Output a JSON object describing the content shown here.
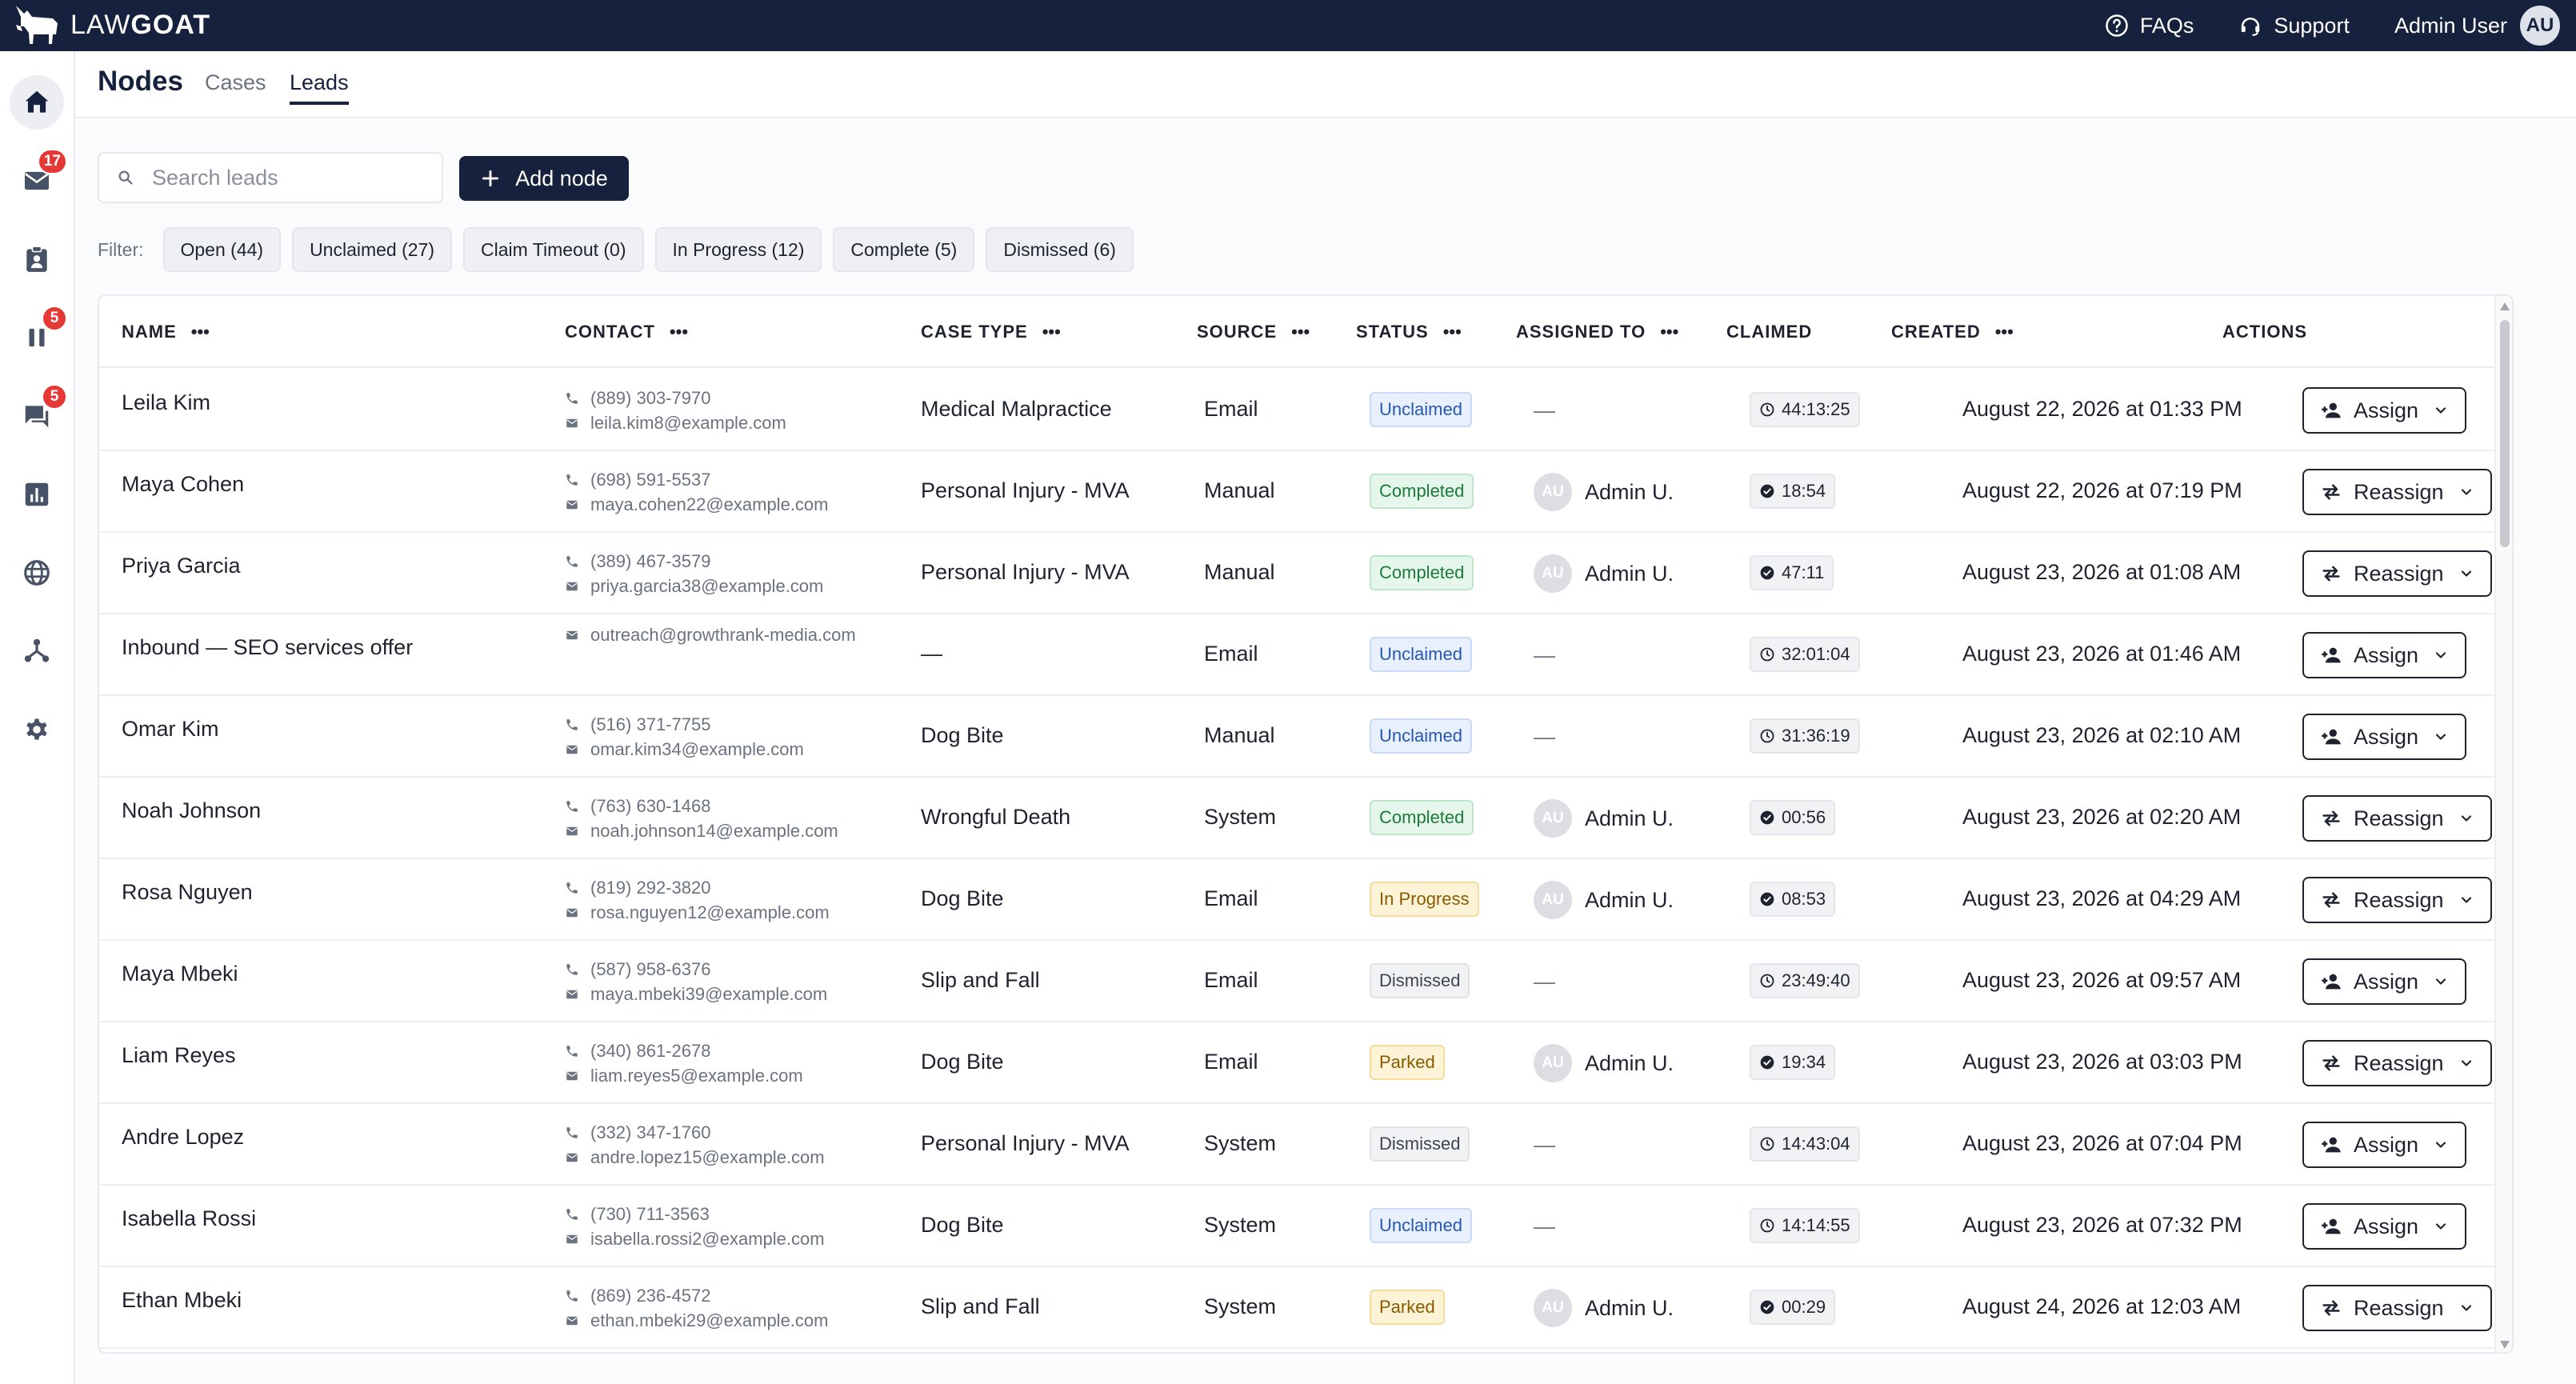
{
  "brand": {
    "name_light": "LAW",
    "name_bold": "GOAT",
    "icon": "goat-logo-icon"
  },
  "topbar": {
    "faqs": "FAQs",
    "support": "Support",
    "user_name": "Admin User",
    "user_initials": "AU"
  },
  "rail": {
    "items": [
      {
        "name": "home",
        "icon": "home-icon",
        "badge": ""
      },
      {
        "name": "mail",
        "icon": "mail-icon",
        "badge": "17"
      },
      {
        "name": "clipboard",
        "icon": "clipboard-user-icon",
        "badge": ""
      },
      {
        "name": "pause",
        "icon": "pause-icon",
        "badge": "5"
      },
      {
        "name": "chat",
        "icon": "chat-icon",
        "badge": "5"
      },
      {
        "name": "analytics",
        "icon": "bar-chart-icon",
        "badge": ""
      },
      {
        "name": "globe",
        "icon": "globe-icon",
        "badge": ""
      },
      {
        "name": "network",
        "icon": "network-icon",
        "badge": ""
      },
      {
        "name": "settings",
        "icon": "gear-icon",
        "badge": ""
      }
    ]
  },
  "header": {
    "title": "Nodes",
    "tabs": [
      {
        "label": "Cases"
      },
      {
        "label": "Leads"
      }
    ],
    "active_tab": "Leads"
  },
  "toolbar": {
    "search_placeholder": "Search leads",
    "search_value": "",
    "add_label": "Add node"
  },
  "filters": {
    "label": "Filter:",
    "chips": [
      {
        "label": "Open (44)"
      },
      {
        "label": "Unclaimed (27)"
      },
      {
        "label": "Claim Timeout (0)"
      },
      {
        "label": "In Progress (12)"
      },
      {
        "label": "Complete (5)"
      },
      {
        "label": "Dismissed (6)"
      }
    ]
  },
  "table": {
    "columns": [
      {
        "label": "NAME",
        "menu": true
      },
      {
        "label": "CONTACT",
        "menu": true
      },
      {
        "label": "CASE TYPE",
        "menu": true
      },
      {
        "label": "SOURCE",
        "menu": true
      },
      {
        "label": "STATUS",
        "menu": true
      },
      {
        "label": "ASSIGNED TO",
        "menu": true
      },
      {
        "label": "CLAIMED",
        "menu": false
      },
      {
        "label": "CREATED",
        "menu": true
      },
      {
        "label": "ACTIONS",
        "menu": false
      }
    ],
    "column_menu_glyph": "•••",
    "rows": [
      {
        "name": "Leila Kim",
        "phone": "(889) 303-7970",
        "email": "leila.kim8@example.com",
        "case_type": "Medical Malpractice",
        "source": "Email",
        "status": "Unclaimed",
        "assigned": "",
        "claimed": "44:13:25",
        "claimed_done": false,
        "created": "August 22, 2026 at 01:33 PM",
        "action": "Assign"
      },
      {
        "name": "Maya Cohen",
        "phone": "(698) 591-5537",
        "email": "maya.cohen22@example.com",
        "case_type": "Personal Injury - MVA",
        "source": "Manual",
        "status": "Completed",
        "assigned": "Admin U.",
        "claimed": "18:54",
        "claimed_done": true,
        "created": "August 22, 2026 at 07:19 PM",
        "action": "Reassign"
      },
      {
        "name": "Priya Garcia",
        "phone": "(389) 467-3579",
        "email": "priya.garcia38@example.com",
        "case_type": "Personal Injury - MVA",
        "source": "Manual",
        "status": "Completed",
        "assigned": "Admin U.",
        "claimed": "47:11",
        "claimed_done": true,
        "created": "August 23, 2026 at 01:08 AM",
        "action": "Reassign"
      },
      {
        "name": "Inbound — SEO services offer",
        "phone": "",
        "email": "outreach@growthrank-media.com",
        "case_type": "—",
        "source": "Email",
        "status": "Unclaimed",
        "assigned": "",
        "claimed": "32:01:04",
        "claimed_done": false,
        "created": "August 23, 2026 at 01:46 AM",
        "action": "Assign"
      },
      {
        "name": "Omar Kim",
        "phone": "(516) 371-7755",
        "email": "omar.kim34@example.com",
        "case_type": "Dog Bite",
        "source": "Manual",
        "status": "Unclaimed",
        "assigned": "",
        "claimed": "31:36:19",
        "claimed_done": false,
        "created": "August 23, 2026 at 02:10 AM",
        "action": "Assign"
      },
      {
        "name": "Noah Johnson",
        "phone": "(763) 630-1468",
        "email": "noah.johnson14@example.com",
        "case_type": "Wrongful Death",
        "source": "System",
        "status": "Completed",
        "assigned": "Admin U.",
        "claimed": "00:56",
        "claimed_done": true,
        "created": "August 23, 2026 at 02:20 AM",
        "action": "Reassign"
      },
      {
        "name": "Rosa Nguyen",
        "phone": "(819) 292-3820",
        "email": "rosa.nguyen12@example.com",
        "case_type": "Dog Bite",
        "source": "Email",
        "status": "In Progress",
        "assigned": "Admin U.",
        "claimed": "08:53",
        "claimed_done": true,
        "created": "August 23, 2026 at 04:29 AM",
        "action": "Reassign"
      },
      {
        "name": "Maya Mbeki",
        "phone": "(587) 958-6376",
        "email": "maya.mbeki39@example.com",
        "case_type": "Slip and Fall",
        "source": "Email",
        "status": "Dismissed",
        "assigned": "",
        "claimed": "23:49:40",
        "claimed_done": false,
        "created": "August 23, 2026 at 09:57 AM",
        "action": "Assign"
      },
      {
        "name": "Liam Reyes",
        "phone": "(340) 861-2678",
        "email": "liam.reyes5@example.com",
        "case_type": "Dog Bite",
        "source": "Email",
        "status": "Parked",
        "assigned": "Admin U.",
        "claimed": "19:34",
        "claimed_done": true,
        "created": "August 23, 2026 at 03:03 PM",
        "action": "Reassign"
      },
      {
        "name": "Andre Lopez",
        "phone": "(332) 347-1760",
        "email": "andre.lopez15@example.com",
        "case_type": "Personal Injury - MVA",
        "source": "System",
        "status": "Dismissed",
        "assigned": "",
        "claimed": "14:43:04",
        "claimed_done": false,
        "created": "August 23, 2026 at 07:04 PM",
        "action": "Assign"
      },
      {
        "name": "Isabella Rossi",
        "phone": "(730) 711-3563",
        "email": "isabella.rossi2@example.com",
        "case_type": "Dog Bite",
        "source": "System",
        "status": "Unclaimed",
        "assigned": "",
        "claimed": "14:14:55",
        "claimed_done": false,
        "created": "August 23, 2026 at 07:32 PM",
        "action": "Assign"
      },
      {
        "name": "Ethan Mbeki",
        "phone": "(869) 236-4572",
        "email": "ethan.mbeki29@example.com",
        "case_type": "Slip and Fall",
        "source": "System",
        "status": "Parked",
        "assigned": "Admin U.",
        "claimed": "00:29",
        "claimed_done": true,
        "created": "August 24, 2026 at 12:03 AM",
        "action": "Reassign"
      }
    ],
    "empty_placeholder": "—",
    "assignee_initials": "AU"
  },
  "colors": {
    "navy": "#15213d",
    "badge_red": "#e53935",
    "unclaimed": "#2657b3",
    "completed": "#1e7a3c",
    "in_progress": "#8a5a00"
  }
}
